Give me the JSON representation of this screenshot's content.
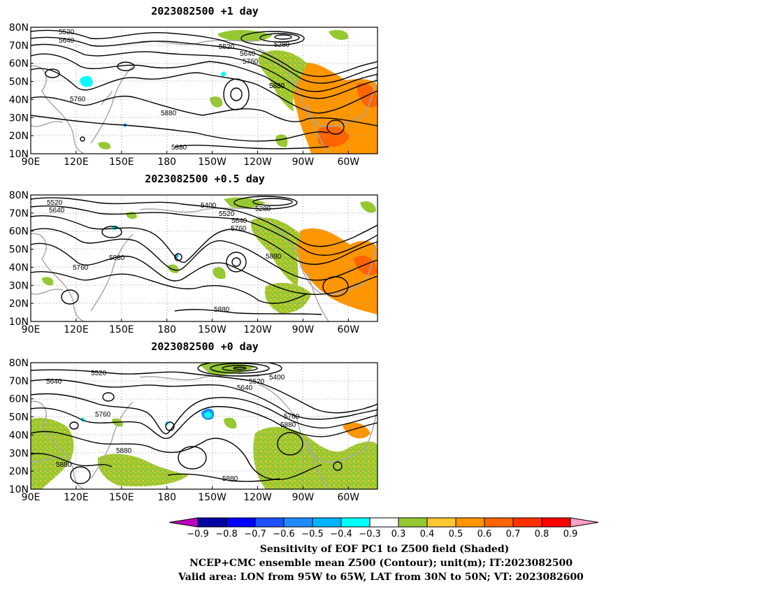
{
  "panels": [
    {
      "title": "2023082500  +1 day",
      "contour_labels": [
        "5520",
        "5640",
        "5760",
        "5880",
        "5880",
        "5880",
        "5520",
        "5640",
        "5760",
        "5880",
        "5280"
      ]
    },
    {
      "title": "2023082500  +0.5 day",
      "contour_labels": [
        "5520",
        "5640",
        "5760",
        "5880",
        "5400",
        "5520",
        "5640",
        "5760",
        "5880",
        "5280",
        "5880"
      ]
    },
    {
      "title": "2023082500  +0 day",
      "contour_labels": [
        "5640",
        "5520",
        "5760",
        "5880",
        "5880",
        "5880",
        "5520",
        "5640",
        "5400",
        "5760",
        "5880"
      ]
    }
  ],
  "axes": {
    "lat_ticks": [
      "80N",
      "70N",
      "60N",
      "50N",
      "40N",
      "30N",
      "20N",
      "10N"
    ],
    "lon_ticks": [
      "90E",
      "120E",
      "150E",
      "180",
      "150W",
      "120W",
      "90W",
      "60W"
    ]
  },
  "colorbar": {
    "ticks": [
      "−0.9",
      "−0.8",
      "−0.7",
      "−0.6",
      "−0.5",
      "−0.4",
      "−0.3",
      "0.3",
      "0.4",
      "0.5",
      "0.6",
      "0.7",
      "0.8",
      "0.9"
    ],
    "colors": [
      "#c000c0",
      "#0000a0",
      "#0000ff",
      "#1e50ff",
      "#1e8cff",
      "#00b4ff",
      "#00ffff",
      "#ffffff",
      "#96c832",
      "#ffc832",
      "#ff9600",
      "#ff6400",
      "#ff3200",
      "#ff0000",
      "#ffa0c8"
    ]
  },
  "caption": {
    "line1": "Sensitivity of EOF PC1 to Z500 field (Shaded)",
    "line2": "NCEP+CMC ensemble mean Z500 (Contour); unit(m); IT:2023082500",
    "line3": "Valid area: LON from 95W to 65W, LAT from 30N to 50N; VT: 2023082600"
  }
}
